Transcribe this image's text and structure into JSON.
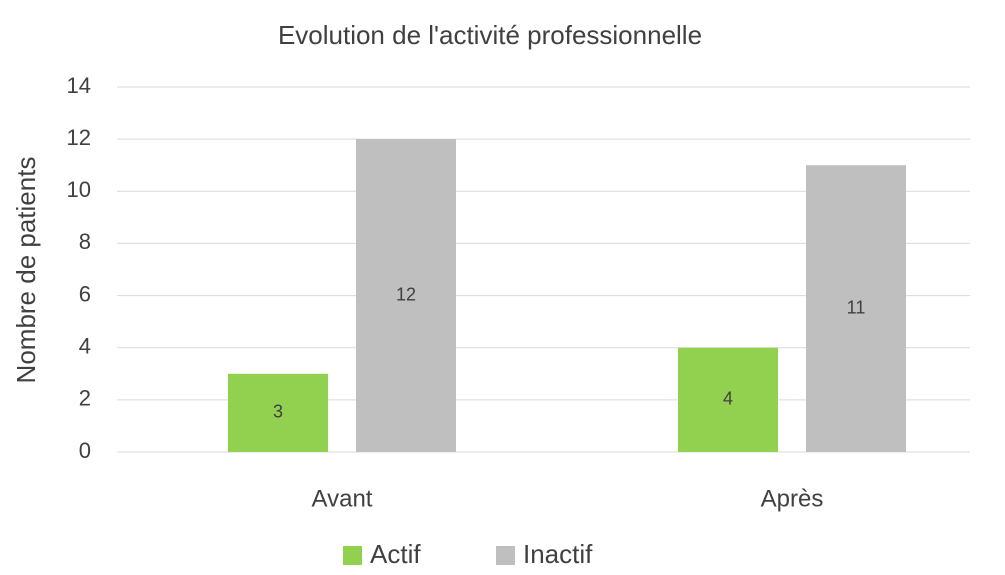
{
  "chart_data": {
    "type": "bar",
    "title": "Evolution de l'activité professionnelle",
    "y_label": "Nombre de patients",
    "categories": [
      "Avant",
      "Après"
    ],
    "series": [
      {
        "name": "Actif",
        "color": "#92d050",
        "values": [
          3,
          4
        ]
      },
      {
        "name": "Inactif",
        "color": "#bfbfbf",
        "values": [
          12,
          11
        ]
      }
    ],
    "ylim": [
      0,
      14
    ],
    "yticks": [
      0,
      2,
      4,
      6,
      8,
      10,
      12,
      14
    ],
    "grid": true,
    "legend": "bottom"
  }
}
